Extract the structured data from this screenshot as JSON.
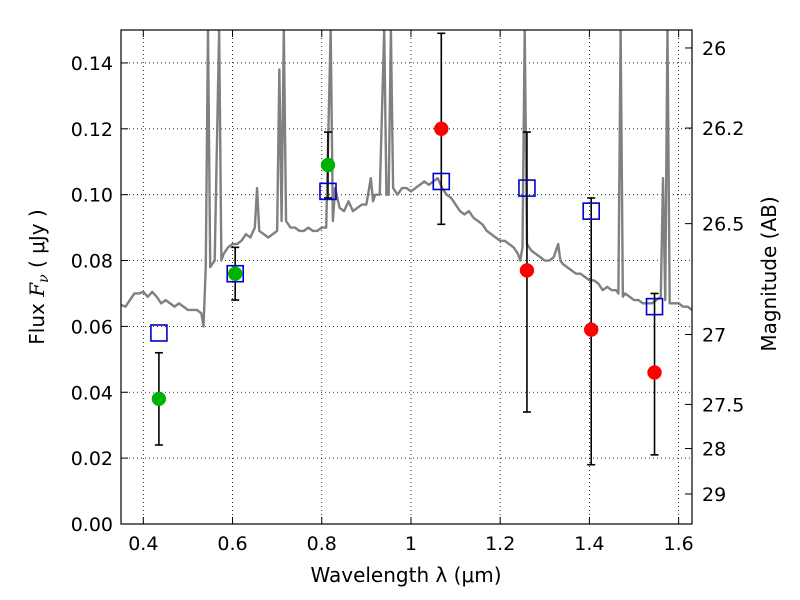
{
  "chart_data": {
    "type": "scatter",
    "xlabel": "Wavelength  λ (μm)",
    "ylabel_parts": {
      "prefix": "Flux  ",
      "symbol": "F",
      "subscript": "ν",
      "suffix": "  ( μJy )"
    },
    "ylabel_right": "Magnitude (AB)",
    "xlim": [
      0.35,
      1.63
    ],
    "ylim": [
      0.0,
      0.15
    ],
    "grid": true,
    "x_ticks": [
      {
        "value": 0.4,
        "label": "0.4"
      },
      {
        "value": 0.6,
        "label": "0.6"
      },
      {
        "value": 0.8,
        "label": "0.8"
      },
      {
        "value": 1.0,
        "label": "1"
      },
      {
        "value": 1.2,
        "label": "1.2"
      },
      {
        "value": 1.4,
        "label": "1.4"
      },
      {
        "value": 1.6,
        "label": "1.6"
      }
    ],
    "y_ticks": [
      {
        "value": 0.0,
        "label": "0.00"
      },
      {
        "value": 0.02,
        "label": "0.02"
      },
      {
        "value": 0.04,
        "label": "0.04"
      },
      {
        "value": 0.06,
        "label": "0.06"
      },
      {
        "value": 0.08,
        "label": "0.08"
      },
      {
        "value": 0.1,
        "label": "0.10"
      },
      {
        "value": 0.12,
        "label": "0.12"
      },
      {
        "value": 0.14,
        "label": "0.14"
      }
    ],
    "right_ticks": [
      {
        "mag": 26,
        "label": "26"
      },
      {
        "mag": 26.2,
        "label": "26.2"
      },
      {
        "mag": 26.5,
        "label": "26.5"
      },
      {
        "mag": 27,
        "label": "27"
      },
      {
        "mag": 27.5,
        "label": "27.5"
      },
      {
        "mag": 28,
        "label": "28"
      },
      {
        "mag": 29,
        "label": "29"
      }
    ],
    "colors": {
      "model": "#808080",
      "detected": "#00b200",
      "upper": "#ff0000",
      "model_box": "#0000cc",
      "errorbar": "#000000"
    },
    "model_sed": [
      [
        0.35,
        0.0665
      ],
      [
        0.36,
        0.066
      ],
      [
        0.37,
        0.068
      ],
      [
        0.38,
        0.07
      ],
      [
        0.39,
        0.07
      ],
      [
        0.4,
        0.0705
      ],
      [
        0.41,
        0.069
      ],
      [
        0.42,
        0.0705
      ],
      [
        0.43,
        0.069
      ],
      [
        0.44,
        0.067
      ],
      [
        0.45,
        0.068
      ],
      [
        0.46,
        0.067
      ],
      [
        0.47,
        0.066
      ],
      [
        0.48,
        0.067
      ],
      [
        0.49,
        0.066
      ],
      [
        0.5,
        0.065
      ],
      [
        0.51,
        0.065
      ],
      [
        0.52,
        0.065
      ],
      [
        0.53,
        0.064
      ],
      [
        0.535,
        0.06
      ],
      [
        0.54,
        0.078
      ],
      [
        0.545,
        0.15
      ],
      [
        0.55,
        0.078
      ],
      [
        0.56,
        0.08
      ],
      [
        0.57,
        0.15
      ],
      [
        0.575,
        0.08
      ],
      [
        0.58,
        0.082
      ],
      [
        0.59,
        0.084
      ],
      [
        0.6,
        0.085
      ],
      [
        0.61,
        0.085
      ],
      [
        0.62,
        0.086
      ],
      [
        0.63,
        0.088
      ],
      [
        0.64,
        0.087
      ],
      [
        0.65,
        0.09
      ],
      [
        0.655,
        0.102
      ],
      [
        0.66,
        0.089
      ],
      [
        0.67,
        0.088
      ],
      [
        0.68,
        0.087
      ],
      [
        0.69,
        0.088
      ],
      [
        0.7,
        0.089
      ],
      [
        0.705,
        0.138
      ],
      [
        0.71,
        0.092
      ],
      [
        0.715,
        0.15
      ],
      [
        0.72,
        0.092
      ],
      [
        0.73,
        0.09
      ],
      [
        0.74,
        0.09
      ],
      [
        0.75,
        0.089
      ],
      [
        0.76,
        0.089
      ],
      [
        0.77,
        0.09
      ],
      [
        0.78,
        0.089
      ],
      [
        0.79,
        0.089
      ],
      [
        0.8,
        0.09
      ],
      [
        0.81,
        0.09
      ],
      [
        0.82,
        0.15
      ],
      [
        0.825,
        0.092
      ],
      [
        0.83,
        0.102
      ],
      [
        0.84,
        0.096
      ],
      [
        0.85,
        0.095
      ],
      [
        0.86,
        0.098
      ],
      [
        0.87,
        0.095
      ],
      [
        0.88,
        0.096
      ],
      [
        0.89,
        0.097
      ],
      [
        0.9,
        0.097
      ],
      [
        0.91,
        0.105
      ],
      [
        0.915,
        0.098
      ],
      [
        0.92,
        0.1
      ],
      [
        0.93,
        0.1
      ],
      [
        0.94,
        0.15
      ],
      [
        0.945,
        0.1
      ],
      [
        0.95,
        0.1
      ],
      [
        0.955,
        0.15
      ],
      [
        0.96,
        0.102
      ],
      [
        0.97,
        0.1
      ],
      [
        0.98,
        0.102
      ],
      [
        0.99,
        0.102
      ],
      [
        1.0,
        0.101
      ],
      [
        1.01,
        0.102
      ],
      [
        1.02,
        0.103
      ],
      [
        1.03,
        0.104
      ],
      [
        1.04,
        0.103
      ],
      [
        1.05,
        0.104
      ],
      [
        1.06,
        0.105
      ],
      [
        1.07,
        0.102
      ],
      [
        1.08,
        0.1
      ],
      [
        1.09,
        0.099
      ],
      [
        1.1,
        0.097
      ],
      [
        1.11,
        0.095
      ],
      [
        1.12,
        0.094
      ],
      [
        1.13,
        0.095
      ],
      [
        1.14,
        0.093
      ],
      [
        1.15,
        0.092
      ],
      [
        1.16,
        0.091
      ],
      [
        1.17,
        0.089
      ],
      [
        1.18,
        0.088
      ],
      [
        1.19,
        0.087
      ],
      [
        1.2,
        0.086
      ],
      [
        1.21,
        0.086
      ],
      [
        1.22,
        0.085
      ],
      [
        1.23,
        0.084
      ],
      [
        1.24,
        0.082
      ],
      [
        1.245,
        0.08
      ],
      [
        1.25,
        0.084
      ],
      [
        1.255,
        0.15
      ],
      [
        1.26,
        0.085
      ],
      [
        1.27,
        0.083
      ],
      [
        1.28,
        0.082
      ],
      [
        1.29,
        0.081
      ],
      [
        1.3,
        0.08
      ],
      [
        1.31,
        0.08
      ],
      [
        1.32,
        0.081
      ],
      [
        1.33,
        0.085
      ],
      [
        1.335,
        0.08
      ],
      [
        1.34,
        0.079
      ],
      [
        1.35,
        0.078
      ],
      [
        1.36,
        0.077
      ],
      [
        1.37,
        0.076
      ],
      [
        1.38,
        0.076
      ],
      [
        1.39,
        0.075
      ],
      [
        1.4,
        0.074
      ],
      [
        1.41,
        0.074
      ],
      [
        1.42,
        0.073
      ],
      [
        1.43,
        0.071
      ],
      [
        1.44,
        0.072
      ],
      [
        1.45,
        0.071
      ],
      [
        1.46,
        0.071
      ],
      [
        1.465,
        0.07
      ],
      [
        1.47,
        0.15
      ],
      [
        1.475,
        0.069
      ],
      [
        1.48,
        0.07
      ],
      [
        1.49,
        0.069
      ],
      [
        1.5,
        0.068
      ],
      [
        1.51,
        0.068
      ],
      [
        1.52,
        0.067
      ],
      [
        1.53,
        0.067
      ],
      [
        1.54,
        0.067
      ],
      [
        1.55,
        0.068
      ],
      [
        1.56,
        0.069
      ],
      [
        1.565,
        0.105
      ],
      [
        1.57,
        0.068
      ],
      [
        1.575,
        0.15
      ],
      [
        1.58,
        0.067
      ],
      [
        1.59,
        0.067
      ],
      [
        1.6,
        0.067
      ],
      [
        1.61,
        0.066
      ],
      [
        1.62,
        0.066
      ],
      [
        1.63,
        0.065
      ]
    ],
    "points": [
      {
        "x": 0.435,
        "flux": 0.038,
        "err": [
          0.024,
          0.052
        ],
        "color": "detected",
        "model": 0.058
      },
      {
        "x": 0.606,
        "flux": 0.076,
        "err": [
          0.068,
          0.084
        ],
        "color": "detected",
        "model": 0.076
      },
      {
        "x": 0.814,
        "flux": 0.109,
        "err": [
          0.099,
          0.119
        ],
        "color": "detected",
        "model": 0.101
      },
      {
        "x": 1.068,
        "flux": 0.12,
        "err": [
          0.091,
          0.149
        ],
        "color": "upper",
        "model": 0.104
      },
      {
        "x": 1.26,
        "flux": 0.077,
        "err": [
          0.034,
          0.119
        ],
        "color": "upper",
        "model": 0.102
      },
      {
        "x": 1.404,
        "flux": 0.059,
        "err": [
          0.018,
          0.099
        ],
        "color": "upper",
        "model": 0.095
      },
      {
        "x": 1.546,
        "flux": 0.046,
        "err": [
          0.021,
          0.07
        ],
        "color": "upper",
        "model": 0.066
      }
    ]
  }
}
